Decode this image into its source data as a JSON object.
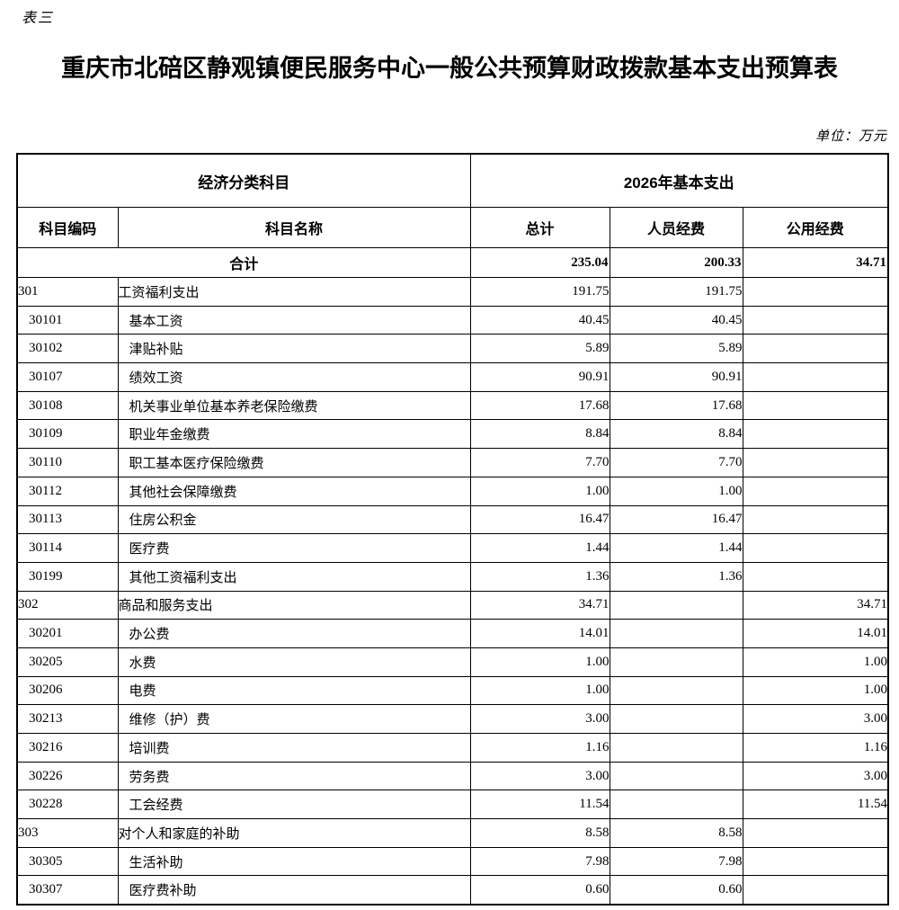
{
  "doc": {
    "corner_label": "表三",
    "title": "重庆市北碚区静观镇便民服务中心一般公共预算财政拨款基本支出预算表",
    "unit_note": "单位：万元"
  },
  "table": {
    "header": {
      "group_left": "经济分类科目",
      "group_right": "2026年基本支出",
      "columns": [
        "科目编码",
        "科目名称",
        "总计",
        "人员经费",
        "公用经费"
      ]
    },
    "total_row": {
      "label": "合计",
      "total": "235.04",
      "personnel": "200.33",
      "public": "34.71"
    },
    "rows": [
      {
        "code": "301",
        "name": "工资福利支出",
        "total": "191.75",
        "personnel": "191.75",
        "public": "",
        "level": "section"
      },
      {
        "code": "30101",
        "name": "基本工资",
        "total": "40.45",
        "personnel": "40.45",
        "public": "",
        "level": "item"
      },
      {
        "code": "30102",
        "name": "津贴补贴",
        "total": "5.89",
        "personnel": "5.89",
        "public": "",
        "level": "item"
      },
      {
        "code": "30107",
        "name": "绩效工资",
        "total": "90.91",
        "personnel": "90.91",
        "public": "",
        "level": "item"
      },
      {
        "code": "30108",
        "name": "机关事业单位基本养老保险缴费",
        "total": "17.68",
        "personnel": "17.68",
        "public": "",
        "level": "item"
      },
      {
        "code": "30109",
        "name": "职业年金缴费",
        "total": "8.84",
        "personnel": "8.84",
        "public": "",
        "level": "item"
      },
      {
        "code": "30110",
        "name": "职工基本医疗保险缴费",
        "total": "7.70",
        "personnel": "7.70",
        "public": "",
        "level": "item"
      },
      {
        "code": "30112",
        "name": "其他社会保障缴费",
        "total": "1.00",
        "personnel": "1.00",
        "public": "",
        "level": "item"
      },
      {
        "code": "30113",
        "name": "住房公积金",
        "total": "16.47",
        "personnel": "16.47",
        "public": "",
        "level": "item"
      },
      {
        "code": "30114",
        "name": "医疗费",
        "total": "1.44",
        "personnel": "1.44",
        "public": "",
        "level": "item"
      },
      {
        "code": "30199",
        "name": "其他工资福利支出",
        "total": "1.36",
        "personnel": "1.36",
        "public": "",
        "level": "item"
      },
      {
        "code": "302",
        "name": "商品和服务支出",
        "total": "34.71",
        "personnel": "",
        "public": "34.71",
        "level": "section"
      },
      {
        "code": "30201",
        "name": "办公费",
        "total": "14.01",
        "personnel": "",
        "public": "14.01",
        "level": "item"
      },
      {
        "code": "30205",
        "name": "水费",
        "total": "1.00",
        "personnel": "",
        "public": "1.00",
        "level": "item"
      },
      {
        "code": "30206",
        "name": "电费",
        "total": "1.00",
        "personnel": "",
        "public": "1.00",
        "level": "item"
      },
      {
        "code": "30213",
        "name": "维修（护）费",
        "total": "3.00",
        "personnel": "",
        "public": "3.00",
        "level": "item"
      },
      {
        "code": "30216",
        "name": "培训费",
        "total": "1.16",
        "personnel": "",
        "public": "1.16",
        "level": "item"
      },
      {
        "code": "30226",
        "name": "劳务费",
        "total": "3.00",
        "personnel": "",
        "public": "3.00",
        "level": "item"
      },
      {
        "code": "30228",
        "name": "工会经费",
        "total": "11.54",
        "personnel": "",
        "public": "11.54",
        "level": "item"
      },
      {
        "code": "303",
        "name": "对个人和家庭的补助",
        "total": "8.58",
        "personnel": "8.58",
        "public": "",
        "level": "section"
      },
      {
        "code": "30305",
        "name": "生活补助",
        "total": "7.98",
        "personnel": "7.98",
        "public": "",
        "level": "item"
      },
      {
        "code": "30307",
        "name": "医疗费补助",
        "total": "0.60",
        "personnel": "0.60",
        "public": "",
        "level": "item"
      }
    ]
  }
}
